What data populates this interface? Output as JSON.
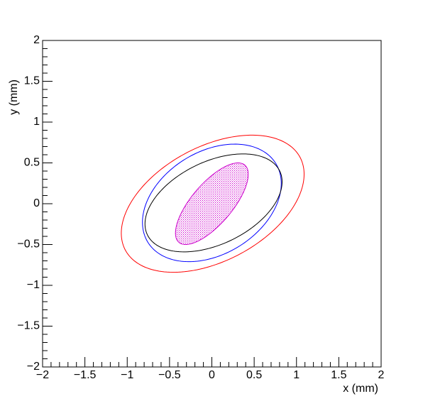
{
  "chart_data": {
    "type": "ellipse",
    "x_label": "x (mm)",
    "y_label": "y (mm)",
    "xlim": [
      -2,
      2
    ],
    "ylim": [
      -2,
      2
    ],
    "xticks": [
      {
        "value": -2,
        "label": "−2"
      },
      {
        "value": -1.5,
        "label": "−1.5"
      },
      {
        "value": -1,
        "label": "−1"
      },
      {
        "value": -0.5,
        "label": "−0.5"
      },
      0,
      0.5,
      1,
      1.5,
      2
    ],
    "yticks": [
      {
        "value": -2,
        "label": "−2"
      },
      {
        "value": -1.5,
        "label": "−1.5"
      },
      {
        "value": -1,
        "label": "−1"
      },
      {
        "value": -0.5,
        "label": "−0.5"
      },
      0,
      0.5,
      1,
      1.5,
      2
    ],
    "minor_divisions": 5,
    "series": [
      {
        "color": "#ff0000",
        "center": [
          0.01,
          0.0
        ],
        "sx": 1.08,
        "sy": 0.84,
        "rho": 0.43,
        "filled": false
      },
      {
        "color": "#0000ff",
        "center": [
          0.0,
          0.01
        ],
        "sx": 0.82,
        "sy": 0.72,
        "rho": 0.33,
        "filled": false
      },
      {
        "color": "#000000",
        "center": [
          0.02,
          0.01
        ],
        "sx": 0.81,
        "sy": 0.6,
        "rho": 0.43,
        "filled": false
      },
      {
        "color": "#cc00cc",
        "center": [
          0.0,
          0.0
        ],
        "sx": 0.43,
        "sy": 0.5,
        "rho": 0.72,
        "filled": true
      }
    ]
  }
}
